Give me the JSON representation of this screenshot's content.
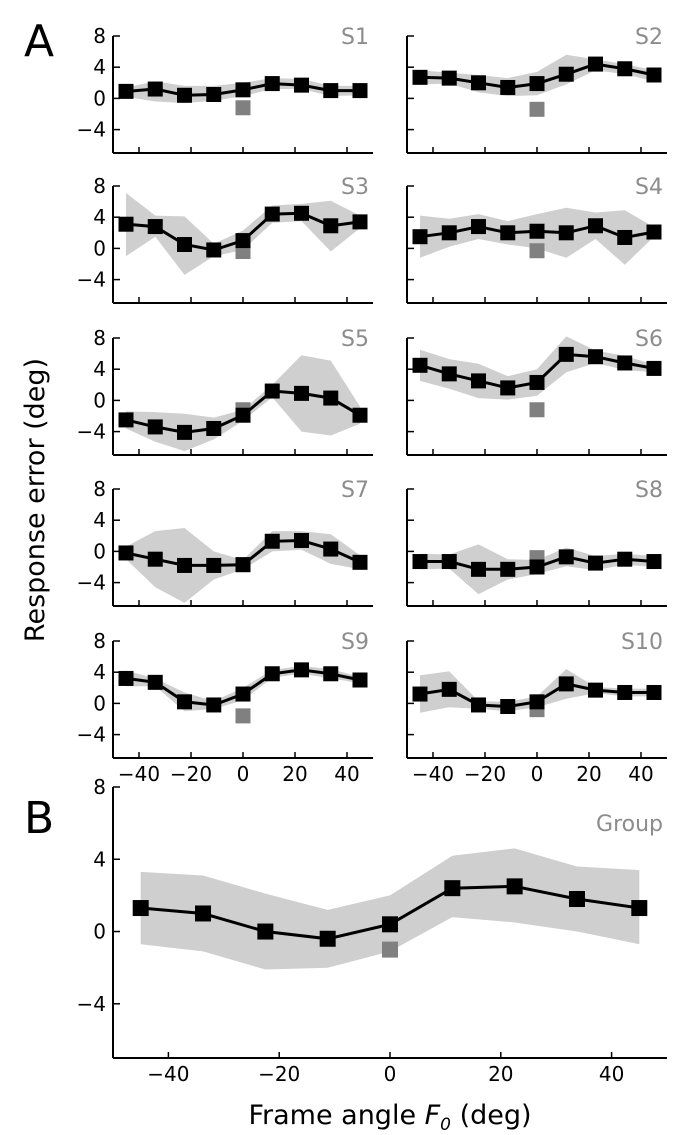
{
  "figure": {
    "panel_labels": [
      "A",
      "B"
    ],
    "ylabel": "Response error (deg)",
    "xlabel_prefix": "Frame angle ",
    "xlabel_var": "F",
    "xlabel_sub": "0",
    "xlabel_suffix": " (deg)"
  },
  "colors": {
    "band": "#cfcfcf",
    "marker": "#000000",
    "baseline_marker": "#808080",
    "subject_label": "#8c8c8c"
  },
  "chart_data": [
    {
      "type": "line",
      "name": "S1",
      "x": [
        -45,
        -33.75,
        -22.5,
        -11.25,
        0,
        11.25,
        22.5,
        33.75,
        45
      ],
      "y": [
        0.9,
        1.2,
        0.4,
        0.5,
        1.1,
        1.9,
        1.7,
        1.0,
        1.0
      ],
      "band_low": [
        0.2,
        -0.4,
        -0.6,
        -0.3,
        0.3,
        1.2,
        1.2,
        0.3,
        0.4
      ],
      "band_high": [
        1.4,
        2.2,
        1.6,
        1.6,
        2.0,
        2.6,
        2.5,
        1.6,
        1.6
      ],
      "baseline": {
        "x": 0,
        "y": -1.2
      },
      "ylim": [
        -7,
        8
      ],
      "yticks": [
        -4,
        0,
        4,
        8
      ],
      "xlim": [
        -50,
        50
      ],
      "xticks": [],
      "grid": false
    },
    {
      "type": "line",
      "name": "S2",
      "x": [
        -45,
        -33.75,
        -22.5,
        -11.25,
        0,
        11.25,
        22.5,
        33.75,
        45
      ],
      "y": [
        2.7,
        2.6,
        2.0,
        1.4,
        1.9,
        3.1,
        4.4,
        3.8,
        3.0
      ],
      "band_low": [
        1.8,
        1.9,
        0.8,
        0.3,
        0.4,
        1.8,
        3.6,
        3.1,
        2.2
      ],
      "band_high": [
        3.6,
        3.3,
        3.0,
        2.6,
        3.4,
        5.6,
        5.0,
        4.4,
        3.6
      ],
      "baseline": {
        "x": 0,
        "y": -1.4
      },
      "ylim": [
        -7,
        8
      ],
      "yticks": [],
      "xlim": [
        -50,
        50
      ],
      "xticks": [],
      "grid": false
    },
    {
      "type": "line",
      "name": "S3",
      "x": [
        -45,
        -33.75,
        -22.5,
        -11.25,
        0,
        11.25,
        22.5,
        33.75,
        45
      ],
      "y": [
        3.1,
        2.8,
        0.5,
        -0.2,
        1.0,
        4.4,
        4.5,
        2.9,
        3.4
      ],
      "band_low": [
        -1.0,
        1.5,
        -3.4,
        -1.0,
        -0.2,
        3.3,
        3.5,
        -0.4,
        2.6
      ],
      "band_high": [
        7.1,
        4.2,
        4.1,
        0.6,
        2.3,
        5.5,
        5.7,
        6.1,
        4.2
      ],
      "baseline": {
        "x": 0,
        "y": -0.4
      },
      "ylim": [
        -7,
        8
      ],
      "yticks": [
        -4,
        0,
        4,
        8
      ],
      "xlim": [
        -50,
        50
      ],
      "xticks": [],
      "grid": false
    },
    {
      "type": "line",
      "name": "S4",
      "x": [
        -45,
        -33.75,
        -22.5,
        -11.25,
        0,
        11.25,
        22.5,
        33.75,
        45
      ],
      "y": [
        1.5,
        2.0,
        2.8,
        2.0,
        2.2,
        2.0,
        2.9,
        1.4,
        2.1
      ],
      "band_low": [
        -1.2,
        0.2,
        1.2,
        0.5,
        0.0,
        -1.2,
        1.2,
        -2.1,
        1.5
      ],
      "band_high": [
        4.2,
        3.8,
        4.4,
        3.5,
        4.4,
        5.2,
        4.6,
        4.9,
        2.7
      ],
      "baseline": {
        "x": 0,
        "y": -0.3
      },
      "ylim": [
        -7,
        8
      ],
      "yticks": [],
      "xlim": [
        -50,
        50
      ],
      "xticks": [],
      "grid": false
    },
    {
      "type": "line",
      "name": "S5",
      "x": [
        -45,
        -33.75,
        -22.5,
        -11.25,
        0,
        11.25,
        22.5,
        33.75,
        45
      ],
      "y": [
        -2.5,
        -3.4,
        -4.1,
        -3.6,
        -1.9,
        1.2,
        0.9,
        0.3,
        -1.9
      ],
      "band_low": [
        -3.6,
        -5.3,
        -6.5,
        -5.0,
        -2.6,
        0.4,
        -4.0,
        -4.5,
        -3.0
      ],
      "band_high": [
        -1.4,
        -1.5,
        -1.7,
        -2.2,
        -1.2,
        2.0,
        5.8,
        5.1,
        -0.8
      ],
      "baseline": {
        "x": 0,
        "y": -1.2
      },
      "ylim": [
        -7,
        8
      ],
      "yticks": [
        -4,
        0,
        4,
        8
      ],
      "xlim": [
        -50,
        50
      ],
      "xticks": [],
      "grid": false
    },
    {
      "type": "line",
      "name": "S6",
      "x": [
        -45,
        -33.75,
        -22.5,
        -11.25,
        0,
        11.25,
        22.5,
        33.75,
        45
      ],
      "y": [
        4.5,
        3.4,
        2.5,
        1.6,
        2.3,
        5.9,
        5.6,
        4.8,
        4.1
      ],
      "band_low": [
        2.5,
        1.5,
        0.3,
        0.1,
        0.6,
        3.6,
        4.8,
        3.9,
        3.6
      ],
      "band_high": [
        6.5,
        5.3,
        4.7,
        3.1,
        4.0,
        8.2,
        6.4,
        5.7,
        4.6
      ],
      "baseline": {
        "x": 0,
        "y": -1.2
      },
      "ylim": [
        -7,
        8
      ],
      "yticks": [],
      "xlim": [
        -50,
        50
      ],
      "xticks": [],
      "grid": false
    },
    {
      "type": "line",
      "name": "S7",
      "x": [
        -45,
        -33.75,
        -22.5,
        -11.25,
        0,
        11.25,
        22.5,
        33.75,
        45
      ],
      "y": [
        -0.2,
        -1.0,
        -1.8,
        -1.8,
        -1.7,
        1.3,
        1.4,
        0.3,
        -1.4
      ],
      "band_low": [
        -1.0,
        -4.6,
        -6.6,
        -3.6,
        -2.3,
        0.0,
        0.2,
        -1.6,
        -2.3
      ],
      "band_high": [
        0.6,
        2.6,
        3.0,
        0.0,
        -1.1,
        2.6,
        2.6,
        2.2,
        -0.5
      ],
      "baseline": {
        "x": 0,
        "y": -1.7
      },
      "ylim": [
        -7,
        8
      ],
      "yticks": [
        -4,
        0,
        4,
        8
      ],
      "xlim": [
        -50,
        50
      ],
      "xticks": [],
      "grid": false
    },
    {
      "type": "line",
      "name": "S8",
      "x": [
        -45,
        -33.75,
        -22.5,
        -11.25,
        0,
        11.25,
        22.5,
        33.75,
        45
      ],
      "y": [
        -1.3,
        -1.3,
        -2.3,
        -2.3,
        -2.0,
        -0.7,
        -1.5,
        -1.0,
        -1.3
      ],
      "band_low": [
        -2.3,
        -2.2,
        -5.5,
        -3.6,
        -2.9,
        -1.9,
        -2.4,
        -1.7,
        -2.0
      ],
      "band_high": [
        -0.3,
        -0.4,
        0.9,
        -1.0,
        -1.1,
        0.5,
        -0.6,
        -0.3,
        -0.6
      ],
      "baseline": {
        "x": 0,
        "y": -0.8
      },
      "ylim": [
        -7,
        8
      ],
      "yticks": [],
      "xlim": [
        -50,
        50
      ],
      "xticks": [],
      "grid": false
    },
    {
      "type": "line",
      "name": "S9",
      "x": [
        -45,
        -33.75,
        -22.5,
        -11.25,
        0,
        11.25,
        22.5,
        33.75,
        45
      ],
      "y": [
        3.2,
        2.7,
        0.2,
        -0.2,
        1.2,
        3.8,
        4.3,
        3.8,
        3.0
      ],
      "band_low": [
        2.2,
        2.2,
        -1.0,
        -0.7,
        0.4,
        3.3,
        3.8,
        3.2,
        2.6
      ],
      "band_high": [
        4.2,
        3.2,
        1.4,
        0.3,
        2.0,
        4.3,
        4.8,
        4.4,
        3.4
      ],
      "baseline": {
        "x": 0,
        "y": -1.6
      },
      "ylim": [
        -7,
        8
      ],
      "yticks": [
        -4,
        0,
        4,
        8
      ],
      "xlim": [
        -50,
        50
      ],
      "xticks": [
        -40,
        -20,
        0,
        20,
        40
      ],
      "grid": false
    },
    {
      "type": "line",
      "name": "S10",
      "x": [
        -45,
        -33.75,
        -22.5,
        -11.25,
        0,
        11.25,
        22.5,
        33.75,
        45
      ],
      "y": [
        1.2,
        1.8,
        -0.2,
        -0.4,
        0.2,
        2.5,
        1.7,
        1.4,
        1.4
      ],
      "band_low": [
        -1.2,
        -0.5,
        -0.7,
        -1.0,
        -0.5,
        0.6,
        1.3,
        0.9,
        0.9
      ],
      "band_high": [
        3.6,
        4.1,
        0.3,
        0.2,
        0.9,
        4.4,
        2.1,
        1.9,
        1.9
      ],
      "baseline": {
        "x": 0,
        "y": -0.8
      },
      "ylim": [
        -7,
        8
      ],
      "yticks": [],
      "xlim": [
        -50,
        50
      ],
      "xticks": [
        -40,
        -20,
        0,
        20,
        40
      ],
      "grid": false
    },
    {
      "type": "line",
      "name": "Group",
      "x": [
        -45,
        -33.75,
        -22.5,
        -11.25,
        0,
        11.25,
        22.5,
        33.75,
        45
      ],
      "y": [
        1.3,
        1.0,
        0.0,
        -0.4,
        0.4,
        2.4,
        2.5,
        1.8,
        1.3
      ],
      "band_low": [
        -0.7,
        -1.1,
        -2.1,
        -2.0,
        -1.1,
        0.8,
        0.5,
        0.0,
        -0.7
      ],
      "band_high": [
        3.3,
        3.1,
        2.1,
        1.2,
        2.0,
        4.2,
        4.6,
        3.6,
        3.4
      ],
      "baseline": {
        "x": 0,
        "y": -1.0
      },
      "ylim": [
        -7,
        8
      ],
      "yticks": [
        -4,
        0,
        4,
        8
      ],
      "xlim": [
        -50,
        50
      ],
      "xticks": [
        -40,
        -20,
        0,
        20,
        40
      ],
      "grid": false
    }
  ]
}
